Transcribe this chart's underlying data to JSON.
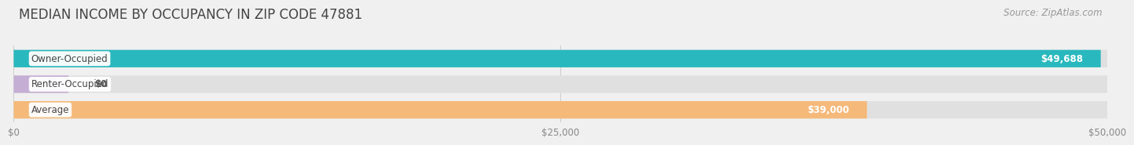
{
  "title": "MEDIAN INCOME BY OCCUPANCY IN ZIP CODE 47881",
  "source": "Source: ZipAtlas.com",
  "categories": [
    "Owner-Occupied",
    "Renter-Occupied",
    "Average"
  ],
  "values": [
    49688,
    0,
    39000
  ],
  "bar_colors": [
    "#29b8be",
    "#c5aed4",
    "#f5b97a"
  ],
  "bar_labels": [
    "$49,688",
    "$0",
    "$39,000"
  ],
  "xlim": [
    0,
    50000
  ],
  "xticklabels": [
    "$0",
    "$25,000",
    "$50,000"
  ],
  "xtick_positions": [
    0,
    25000,
    50000
  ],
  "background_color": "#f0f0f0",
  "bar_track_color": "#e0e0e0",
  "title_fontsize": 12,
  "source_fontsize": 8.5,
  "bar_height": 0.68,
  "bar_gap": 1.0,
  "value_fontsize": 8.5,
  "category_fontsize": 8.5,
  "renter_bar_width": 2500
}
